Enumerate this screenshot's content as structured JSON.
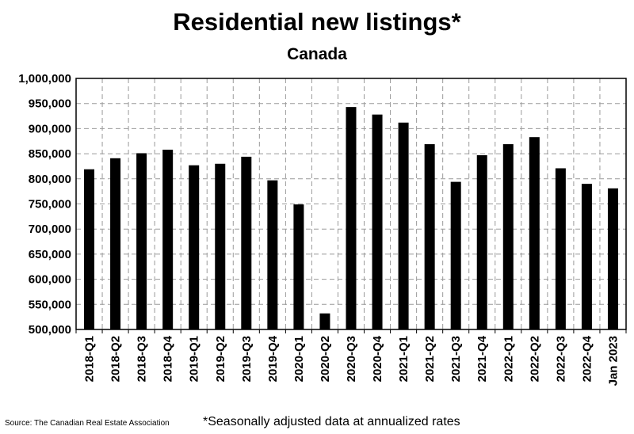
{
  "chart_data": {
    "type": "bar",
    "title": "Residential new listings*",
    "subtitle": "Canada",
    "categories": [
      "2018-Q1",
      "2018-Q2",
      "2018-Q3",
      "2018-Q4",
      "2019-Q1",
      "2019-Q2",
      "2019-Q3",
      "2019-Q4",
      "2020-Q1",
      "2020-Q2",
      "2020-Q3",
      "2020-Q4",
      "2021-Q1",
      "2021-Q2",
      "2021-Q3",
      "2021-Q4",
      "2022-Q1",
      "2022-Q2",
      "2022-Q3",
      "2022-Q4",
      "Jan 2023"
    ],
    "values": [
      819000,
      841000,
      851000,
      858000,
      827000,
      830000,
      844000,
      797000,
      749000,
      532000,
      943000,
      928000,
      912000,
      869000,
      794000,
      847000,
      869000,
      883000,
      821000,
      790000,
      781000
    ],
    "ylim": [
      500000,
      1000000
    ],
    "yticks": [
      500000,
      550000,
      600000,
      650000,
      700000,
      750000,
      800000,
      850000,
      900000,
      950000,
      1000000
    ],
    "ytick_labels": [
      "500,000",
      "550,000",
      "600,000",
      "650,000",
      "700,000",
      "750,000",
      "800,000",
      "850,000",
      "900,000",
      "950,000",
      "1,000,000"
    ],
    "grid": "dashed",
    "bar_color": "#000000",
    "footnote": "*Seasonally adjusted data at annualized rates",
    "source": "Source: The Canadian Real Estate Association"
  }
}
